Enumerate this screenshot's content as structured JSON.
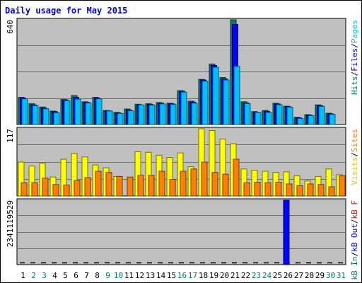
{
  "title": "Daily usage for May 2015",
  "chart_data": {
    "type": "bar",
    "title": "Daily usage for May 2015",
    "categories": [
      "1",
      "2",
      "3",
      "4",
      "5",
      "6",
      "7",
      "8",
      "9",
      "10",
      "11",
      "12",
      "13",
      "14",
      "15",
      "16",
      "17",
      "18",
      "19",
      "20",
      "21",
      "22",
      "23",
      "24",
      "25",
      "26",
      "27",
      "28",
      "29",
      "30",
      "31"
    ],
    "weekend_days": [
      "2",
      "3",
      "9",
      "10",
      "16",
      "17",
      "23",
      "24",
      "30",
      "31"
    ],
    "panels": [
      {
        "name": "pages-files-hits",
        "scale_label": "640",
        "ylim": [
          0,
          640
        ],
        "series": [
          {
            "name": "Hits",
            "color": "#00805c",
            "values": [
              166,
              127,
              107,
              82,
              153,
              177,
              139,
              166,
              86,
              74,
              95,
              124,
              127,
              134,
              130,
              207,
              143,
              276,
              370,
              287,
              640,
              139,
              79,
              86,
              130,
              112,
              44,
              60,
              120,
              69,
              0
            ]
          },
          {
            "name": "Files",
            "color": "#0000ff",
            "values": [
              162,
              120,
              100,
              78,
              150,
              166,
              135,
              162,
              84,
              70,
              89,
              120,
              123,
              130,
              127,
              203,
              137,
              272,
              361,
              279,
              612,
              132,
              75,
              80,
              125,
              109,
              41,
              57,
              115,
              65,
              0
            ]
          },
          {
            "name": "Pages",
            "color": "#00bfff",
            "values": [
              157,
              115,
              96,
              73,
              146,
              155,
              132,
              157,
              83,
              67,
              84,
              120,
              119,
              126,
              123,
              198,
              131,
              265,
              350,
              272,
              355,
              128,
              74,
              74,
              121,
              106,
              37,
              54,
              111,
              62,
              0
            ]
          }
        ]
      },
      {
        "name": "visits-sites",
        "scale_label": "117",
        "ylim": [
          0,
          117
        ],
        "series": [
          {
            "name": "Visits",
            "color": "#ffff00",
            "values": [
              59,
              52,
              57,
              33,
              64,
              74,
              68,
              54,
              49,
              34,
              0,
              77,
              76,
              71,
              67,
              75,
              51,
              117,
              114,
              99,
              91,
              47,
              45,
              43,
              41,
              42,
              35,
              26,
              34,
              47,
              37
            ]
          },
          {
            "name": "Sites",
            "color": "#ff8000",
            "values": [
              23,
              23,
              31,
              20,
              19,
              27,
              32,
              43,
              41,
              34,
              33,
              36,
              36,
              43,
              29,
              43,
              47,
              59,
              41,
              38,
              64,
              23,
              24,
              23,
              24,
              21,
              18,
              21,
              20,
              16,
              35
            ]
          }
        ]
      },
      {
        "name": "kbin-kbout-kbf",
        "scale_label": "2341119529",
        "ylim": [
          0,
          2341119529
        ],
        "series": [
          {
            "name": "KB In",
            "color": "#0000ff",
            "values": [
              0,
              0,
              0,
              0,
              0,
              0,
              0,
              0,
              0,
              0,
              0,
              0,
              0,
              0,
              0,
              0,
              0,
              0,
              0,
              0,
              0,
              0,
              0,
              0,
              0,
              2341119529,
              0,
              0,
              0,
              0,
              0
            ]
          }
        ]
      }
    ],
    "right_labels": {
      "top": [
        {
          "text": "Hits",
          "color": "#00805c"
        },
        {
          "text": "/",
          "color": "#000000"
        },
        {
          "text": "Files",
          "color": "#0000ff"
        },
        {
          "text": "/",
          "color": "#000000"
        },
        {
          "text": "Pages",
          "color": "#00bfff"
        }
      ],
      "middle": [
        {
          "text": "Visits",
          "color": "#e6c800"
        },
        {
          "text": "/",
          "color": "#000000"
        },
        {
          "text": "Sites",
          "color": "#ff8000"
        }
      ],
      "bottom": [
        {
          "text": "kB In",
          "color": "#00805c"
        },
        {
          "text": "/",
          "color": "#000000"
        },
        {
          "text": "kB Out",
          "color": "#0000ff"
        },
        {
          "text": "/",
          "color": "#000000"
        },
        {
          "text": "kB F",
          "color": "#ff0000"
        }
      ]
    },
    "grid": true,
    "colors": {
      "plot_bg": "#c0c0c0",
      "weekday_label": "#000000",
      "weekend_label": "#00805c",
      "title": "#0000cc"
    }
  }
}
